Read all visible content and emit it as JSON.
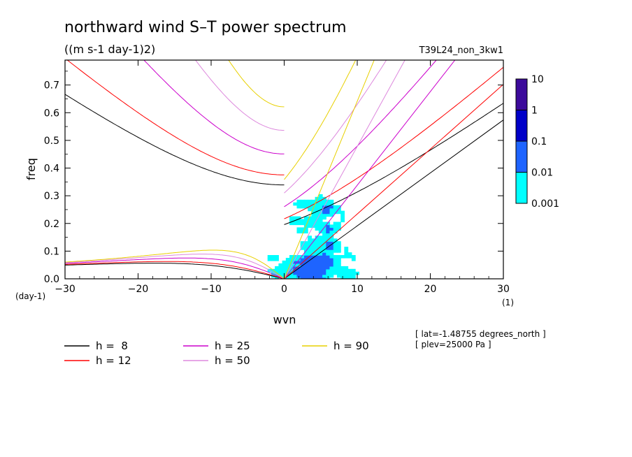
{
  "chart_data": {
    "type": "heatmap",
    "title": "northward wind S–T power spectrum",
    "subtitle": "((m s-1 day-1)2)",
    "run_label": "T39L24_non_3kw1",
    "xlabel": "wvn",
    "ylabel": "freq",
    "x_unit": "(1)",
    "y_unit": "(day-1)",
    "xlim": [
      -30,
      30
    ],
    "ylim": [
      0,
      0.79
    ],
    "x_ticks": [
      -30,
      -20,
      -10,
      0,
      10,
      20,
      30
    ],
    "x_tick_labels": [
      "−30",
      "−20",
      "−10",
      "0",
      "10",
      "20",
      "30"
    ],
    "y_ticks": [
      0.0,
      0.1,
      0.2,
      0.3,
      0.4,
      0.5,
      0.6,
      0.7
    ],
    "y_tick_labels": [
      "0.0",
      "0.1",
      "0.2",
      "0.3",
      "0.4",
      "0.5",
      "0.6",
      "0.7"
    ],
    "contour_levels": [
      0.001,
      0.01,
      0.1,
      1,
      10
    ],
    "colorbar_labels": [
      "10",
      "1",
      "0.1",
      "0.01",
      "0.001"
    ],
    "fill_colors": [
      "#00ffff",
      "#1e64ff",
      "#0000c8",
      "#3c0a9b"
    ],
    "dispersion_curves": [
      {
        "label": "h =  8",
        "h": 8,
        "color": "#000000"
      },
      {
        "label": "h = 12",
        "h": 12,
        "color": "#ff0000"
      },
      {
        "label": "h = 25",
        "h": 25,
        "color": "#cc00cc"
      },
      {
        "label": "h = 50",
        "h": 50,
        "color": "#dd88dd"
      },
      {
        "label": "h = 90",
        "h": 90,
        "color": "#e8d000"
      }
    ],
    "annotations": [
      "[ lat=-1.48755 degrees_north ]",
      "[ plev=25000 Pa ]"
    ]
  }
}
